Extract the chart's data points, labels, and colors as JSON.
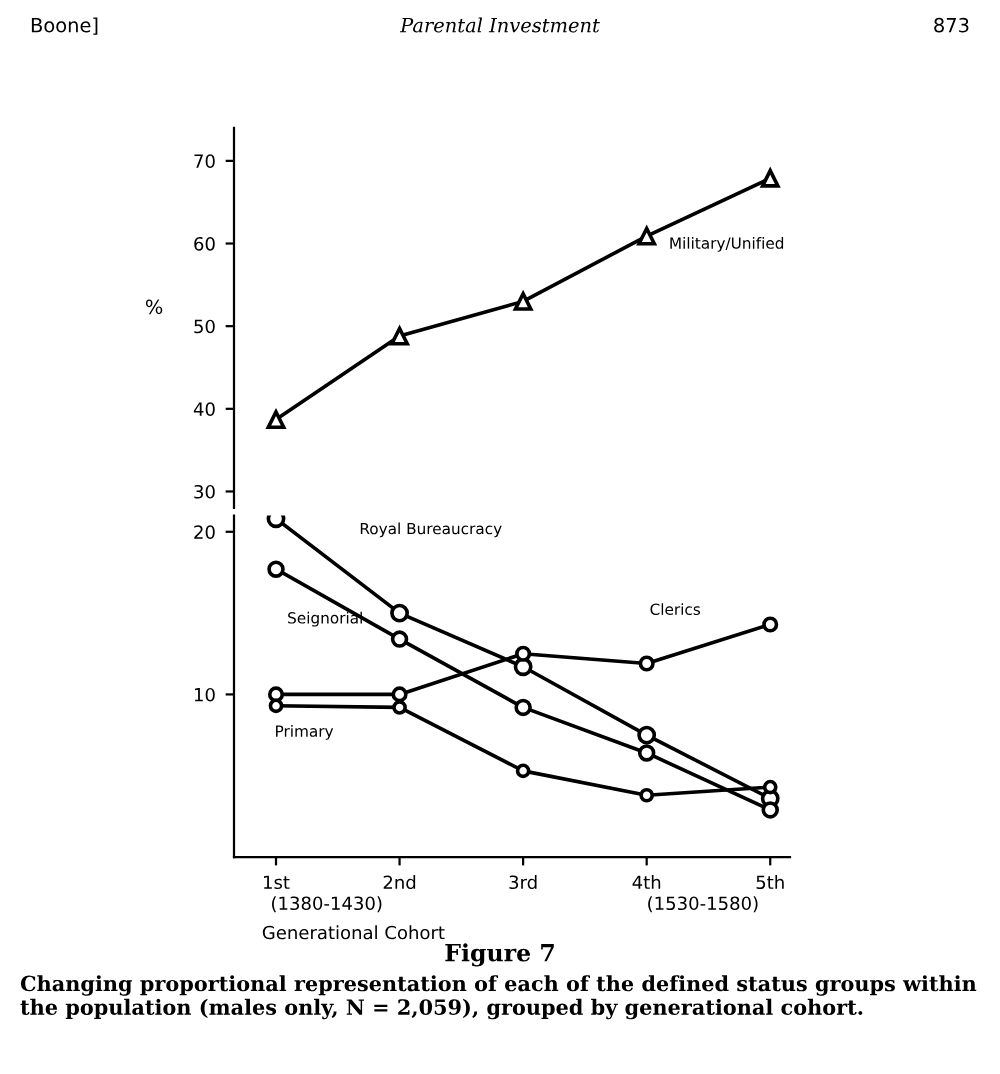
{
  "chart_data": [
    {
      "type": "line",
      "ylabel": "%",
      "categories": [
        null,
        null,
        null,
        null,
        null
      ],
      "ylim": [
        28,
        74
      ],
      "yticks": [
        30,
        40,
        50,
        60,
        70
      ],
      "tick_labels": "y",
      "grid": false,
      "legend": false,
      "marker": "triangle",
      "annotations": [
        "Boone]",
        "Parental Investment",
        "873"
      ],
      "series": [
        {
          "name": "Military/Unified",
          "color": "#000000",
          "values": [
            38.7,
            48.8,
            53.0,
            60.9,
            67.9
          ]
        }
      ]
    },
    {
      "type": "line",
      "xlabel": "Generational Cohort",
      "categories": [
        "1st",
        "2nd",
        "3rd",
        "4th",
        "5th"
      ],
      "ylim": [
        0,
        21
      ],
      "yticks": [
        10,
        20
      ],
      "grid": false,
      "legend": false,
      "marker": "circle",
      "annotations": [
        "(1380-1430)",
        "(1530-1580)",
        "Figure 7",
        "Changing proportional representation of each of the defined status groups within the population (males only, N = 2,059), grouped by generational cohort."
      ],
      "series": [
        {
          "name": "Royal Bureaucracy",
          "color": "#000000",
          "values": [
            20.8,
            15.0,
            11.7,
            7.5,
            3.6
          ]
        },
        {
          "name": "Seignorial",
          "color": "#000000",
          "values": [
            17.7,
            13.4,
            9.2,
            6.4,
            2.9
          ]
        },
        {
          "name": "Clerics",
          "color": "#000000",
          "values": [
            10.0,
            10.0,
            12.5,
            11.9,
            14.3
          ]
        },
        {
          "name": "Primary",
          "color": "#000000",
          "values": [
            9.3,
            9.2,
            5.3,
            3.8,
            4.3
          ]
        }
      ]
    }
  ]
}
